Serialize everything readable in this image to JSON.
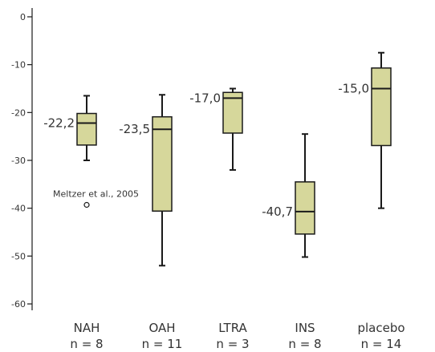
{
  "chart_data": {
    "type": "box",
    "title": "",
    "xlabel": "",
    "ylabel": "",
    "ylim": [
      -61,
      1
    ],
    "yticks": [
      {
        "value": 0,
        "label": "0"
      },
      {
        "value": -10,
        "label": "-10"
      },
      {
        "value": -20,
        "label": "-20"
      },
      {
        "value": -30,
        "label": "-30"
      },
      {
        "value": -40,
        "label": "-40"
      },
      {
        "value": -50,
        "label": "-50"
      },
      {
        "value": -60,
        "label": "-60"
      }
    ],
    "box_color": "#d6d79b",
    "line_color": "#1a1a1a",
    "categories": [
      {
        "name": "NAH",
        "n_label": "n = 8",
        "whisker_high": -16.5,
        "q3": -20.2,
        "median": -22.2,
        "q1": -26.8,
        "whisker_low": -30.0,
        "median_label": "-22,2",
        "outliers": [
          {
            "value": -39.3,
            "label": "Meltzer et al., 2005"
          }
        ]
      },
      {
        "name": "OAH",
        "n_label": "n = 11",
        "whisker_high": -16.3,
        "q3": -20.9,
        "median": -23.5,
        "q1": -40.6,
        "whisker_low": -52.0,
        "median_label": "-23,5",
        "outliers": []
      },
      {
        "name": "LTRA",
        "n_label": "n = 3",
        "whisker_high": -15.0,
        "q3": -15.8,
        "median": -17.0,
        "q1": -24.3,
        "whisker_low": -32.0,
        "median_label": "-17,0",
        "outliers": []
      },
      {
        "name": "INS",
        "n_label": "n = 8",
        "whisker_high": -24.5,
        "q3": -34.5,
        "median": -40.7,
        "q1": -45.4,
        "whisker_low": -50.2,
        "median_label": "-40,7",
        "outliers": []
      },
      {
        "name": "placebo",
        "n_label": "n = 14",
        "whisker_high": -7.5,
        "q3": -10.7,
        "median": -15.0,
        "q1": -26.9,
        "whisker_low": -40.0,
        "median_label": "-15,0",
        "outliers": []
      }
    ]
  }
}
